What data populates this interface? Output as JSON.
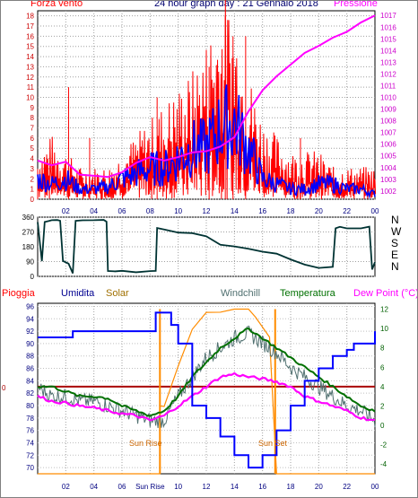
{
  "title": "24 hour graph day : 21 Gennaio 2018",
  "wind_label": "Forza vento",
  "pressure_label": "Pressione",
  "dir_labels": [
    "N",
    "W",
    "S",
    "E",
    "N"
  ],
  "bottom_legend": {
    "rain": "Pioggia",
    "humidity": "Umidita",
    "solar": "Solar",
    "windchill": "Windchill",
    "temperature": "Temperatura",
    "dewpoint": "Dew Point (°C)"
  },
  "sunrise_label": "Sun Rise",
  "sunset_label": "Sun Set",
  "sunrise_tick": "Sun Rise",
  "rain_zero": "0",
  "colors": {
    "wind": "#ff0000",
    "wind_avg": "#0000ff",
    "pressure": "#ff00ff",
    "direction": "#003333",
    "humidity": "#0000ff",
    "solar": "#ff8c00",
    "windchill": "#507070",
    "temperature": "#007000",
    "dewpoint": "#ff00ff",
    "rain": "#aa0000"
  },
  "chart_data": [
    {
      "type": "bar",
      "panel": "wind",
      "x_ticks": [
        "02",
        "04",
        "06",
        "08",
        "10",
        "12",
        "14",
        "16",
        "18",
        "20",
        "22",
        "00"
      ],
      "y_left_ticks": [
        "0",
        "1",
        "2",
        "3",
        "4",
        "5",
        "6",
        "7",
        "8",
        "9",
        "10",
        "11",
        "12",
        "13",
        "14",
        "15",
        "16",
        "17",
        "18"
      ],
      "y_right_ticks": [
        "1002",
        "1003",
        "1004",
        "1005",
        "1006",
        "1007",
        "1008",
        "1009",
        "1010",
        "1011",
        "1012",
        "1013",
        "1014",
        "1015",
        "1016",
        "1017"
      ],
      "ylim_left": [
        0,
        18.5
      ],
      "ylim_right": [
        1001.3,
        1017.4
      ],
      "wind_envelope": [
        [
          0,
          3
        ],
        [
          1,
          4
        ],
        [
          2,
          3
        ],
        [
          3,
          2
        ],
        [
          4,
          2
        ],
        [
          5,
          2
        ],
        [
          6,
          3
        ],
        [
          7,
          4
        ],
        [
          8,
          5
        ],
        [
          9,
          6
        ],
        [
          10,
          7
        ],
        [
          11,
          8
        ],
        [
          12,
          10
        ],
        [
          13,
          13
        ],
        [
          14,
          12
        ],
        [
          15,
          8
        ],
        [
          16,
          5
        ],
        [
          17,
          4
        ],
        [
          18,
          3
        ],
        [
          19,
          3
        ],
        [
          20,
          3
        ],
        [
          21,
          2
        ],
        [
          22,
          2
        ],
        [
          23,
          2
        ],
        [
          24,
          2
        ]
      ],
      "wind_peaks": [
        [
          2.2,
          11
        ],
        [
          3.7,
          6
        ],
        [
          8.5,
          10
        ],
        [
          12.2,
          13
        ],
        [
          13.35,
          18
        ],
        [
          13.9,
          16
        ],
        [
          14.8,
          16
        ],
        [
          18.7,
          6
        ]
      ],
      "wind_avg": [
        [
          0,
          2
        ],
        [
          1,
          1.5
        ],
        [
          2,
          2
        ],
        [
          3,
          1
        ],
        [
          4,
          1
        ],
        [
          5,
          1.2
        ],
        [
          6,
          2
        ],
        [
          7,
          2.5
        ],
        [
          8,
          3
        ],
        [
          9,
          3
        ],
        [
          10,
          4
        ],
        [
          11,
          5
        ],
        [
          12,
          5
        ],
        [
          13,
          7
        ],
        [
          14,
          7.5
        ],
        [
          15,
          5
        ],
        [
          16,
          2
        ],
        [
          17,
          1.5
        ],
        [
          18,
          1
        ],
        [
          19,
          1
        ],
        [
          20,
          1.5
        ],
        [
          21,
          1.5
        ],
        [
          22,
          1
        ],
        [
          23,
          1
        ],
        [
          24,
          0.5
        ]
      ],
      "pressure": [
        [
          0,
          1004.6
        ],
        [
          1,
          1004.2
        ],
        [
          2,
          1004.5
        ],
        [
          3,
          1003.4
        ],
        [
          4,
          1003.3
        ],
        [
          5,
          1003.2
        ],
        [
          6,
          1003.6
        ],
        [
          7,
          1004.4
        ],
        [
          8,
          1004.9
        ],
        [
          9,
          1004.6
        ],
        [
          10,
          1004.9
        ],
        [
          11,
          1005.3
        ],
        [
          12,
          1005.4
        ],
        [
          13,
          1005.8
        ],
        [
          14,
          1006.6
        ],
        [
          15,
          1008.8
        ],
        [
          16,
          1010.6
        ],
        [
          17,
          1011.8
        ],
        [
          18,
          1012.8
        ],
        [
          19,
          1013.8
        ],
        [
          20,
          1014.4
        ],
        [
          21,
          1015.1
        ],
        [
          22,
          1015.6
        ],
        [
          23,
          1016.4
        ],
        [
          24,
          1017.0
        ]
      ]
    },
    {
      "type": "line",
      "panel": "direction",
      "y_ticks": [
        "0",
        "90",
        "180",
        "270",
        "360"
      ],
      "ylim": [
        0,
        360
      ],
      "direction": [
        [
          0,
          330
        ],
        [
          0.3,
          95
        ],
        [
          0.5,
          330
        ],
        [
          0.8,
          340
        ],
        [
          1,
          345
        ],
        [
          1.4,
          340
        ],
        [
          1.6,
          340
        ],
        [
          1.8,
          90
        ],
        [
          2.2,
          80
        ],
        [
          2.5,
          20
        ],
        [
          2.7,
          340
        ],
        [
          3.2,
          345
        ],
        [
          4,
          340
        ],
        [
          4.7,
          345
        ],
        [
          4.9,
          330
        ],
        [
          5,
          30
        ],
        [
          5.5,
          30
        ],
        [
          6,
          30
        ],
        [
          7,
          28
        ],
        [
          8,
          32
        ],
        [
          8.4,
          30
        ],
        [
          8.5,
          290
        ],
        [
          9,
          285
        ],
        [
          10,
          270
        ],
        [
          11,
          260
        ],
        [
          12,
          240
        ],
        [
          13,
          190
        ],
        [
          14,
          185
        ],
        [
          15,
          170
        ],
        [
          16,
          150
        ],
        [
          17,
          140
        ],
        [
          18,
          100
        ],
        [
          19,
          70
        ],
        [
          20,
          50
        ],
        [
          21,
          60
        ],
        [
          21.2,
          290
        ],
        [
          21.5,
          300
        ],
        [
          22,
          290
        ],
        [
          23,
          295
        ],
        [
          23.6,
          300
        ],
        [
          23.8,
          40
        ],
        [
          24,
          90
        ]
      ]
    },
    {
      "type": "line",
      "panel": "temperature",
      "x_ticks": [
        "02",
        "04",
        "06",
        "Sun Rise",
        "10",
        "12",
        "14",
        "16",
        "18",
        "20",
        "22",
        "00"
      ],
      "y_left_ticks": [
        "70",
        "72",
        "74",
        "76",
        "78",
        "80",
        "82",
        "84",
        "86",
        "88",
        "90",
        "92",
        "94",
        "96"
      ],
      "y_right_ticks": [
        "-4",
        "-2",
        "0",
        "2",
        "4",
        "6",
        "8",
        "10",
        "12"
      ],
      "ylim_left": [
        69,
        96.5
      ],
      "ylim_right": [
        -5,
        12.6
      ],
      "humidity": [
        [
          0,
          91
        ],
        [
          2.5,
          91
        ],
        [
          2.5,
          92
        ],
        [
          4,
          92
        ],
        [
          8.4,
          92
        ],
        [
          8.4,
          95
        ],
        [
          9.2,
          95
        ],
        [
          9.5,
          93
        ],
        [
          10,
          90
        ],
        [
          11,
          80
        ],
        [
          12,
          78
        ],
        [
          13,
          75
        ],
        [
          14,
          72
        ],
        [
          15,
          70
        ],
        [
          16,
          72
        ],
        [
          17,
          76
        ],
        [
          18,
          80
        ],
        [
          19,
          84
        ],
        [
          20,
          86
        ],
        [
          21,
          88
        ],
        [
          22,
          89
        ],
        [
          22.5,
          90
        ],
        [
          23,
          90
        ],
        [
          24,
          92
        ]
      ],
      "solar_c": [
        [
          0,
          -5
        ],
        [
          8.7,
          -5
        ],
        [
          8.7,
          2
        ],
        [
          9,
          2
        ],
        [
          10,
          6
        ],
        [
          11,
          10
        ],
        [
          12,
          11.5
        ],
        [
          13,
          11.8
        ],
        [
          14,
          12
        ],
        [
          15,
          12
        ],
        [
          15.5,
          11
        ],
        [
          16.5,
          9
        ],
        [
          17,
          -5
        ],
        [
          24,
          -5
        ]
      ],
      "windchill": [
        [
          0,
          4
        ],
        [
          1,
          3
        ],
        [
          2,
          3
        ],
        [
          3,
          2.5
        ],
        [
          4,
          2.5
        ],
        [
          5,
          2
        ],
        [
          6,
          1.5
        ],
        [
          7,
          1
        ],
        [
          8,
          0.5
        ],
        [
          9,
          0.5
        ],
        [
          10,
          3
        ],
        [
          11,
          5
        ],
        [
          12,
          7
        ],
        [
          13,
          8
        ],
        [
          14,
          9
        ],
        [
          15,
          9.5
        ],
        [
          16,
          8.5
        ],
        [
          17,
          7.5
        ],
        [
          18,
          6
        ],
        [
          19,
          5
        ],
        [
          20,
          4
        ],
        [
          21,
          3
        ],
        [
          22,
          2
        ],
        [
          23,
          1.5
        ],
        [
          24,
          0.5
        ]
      ],
      "temperature": [
        [
          0,
          4
        ],
        [
          1,
          4
        ],
        [
          2,
          3.5
        ],
        [
          3,
          3
        ],
        [
          4,
          3
        ],
        [
          5,
          2.8
        ],
        [
          6,
          2
        ],
        [
          7,
          1.5
        ],
        [
          8,
          1
        ],
        [
          9,
          1.5
        ],
        [
          10,
          3
        ],
        [
          11,
          5
        ],
        [
          12,
          6.5
        ],
        [
          13,
          8
        ],
        [
          14,
          9
        ],
        [
          15,
          10
        ],
        [
          16,
          9
        ],
        [
          17,
          8
        ],
        [
          18,
          7
        ],
        [
          19,
          6
        ],
        [
          20,
          5
        ],
        [
          21,
          4
        ],
        [
          22,
          3
        ],
        [
          23,
          2
        ],
        [
          24,
          1.5
        ]
      ],
      "dewpoint": [
        [
          0,
          3
        ],
        [
          1,
          2.5
        ],
        [
          2,
          2.3
        ],
        [
          3,
          2
        ],
        [
          4,
          1.8
        ],
        [
          5,
          1.5
        ],
        [
          6,
          1.2
        ],
        [
          7,
          1
        ],
        [
          8,
          0.5
        ],
        [
          9,
          1
        ],
        [
          10,
          2
        ],
        [
          11,
          3
        ],
        [
          12,
          4
        ],
        [
          13,
          5
        ],
        [
          14,
          5.3
        ],
        [
          15,
          5
        ],
        [
          16,
          4.8
        ],
        [
          17,
          4.5
        ],
        [
          18,
          4
        ],
        [
          19,
          3
        ],
        [
          20,
          2.5
        ],
        [
          21,
          2
        ],
        [
          22,
          1.5
        ],
        [
          23,
          0.8
        ],
        [
          24,
          0.5
        ]
      ],
      "rain": 0,
      "sunrise_hour": 8.7,
      "sunset_hour": 16.9
    }
  ]
}
